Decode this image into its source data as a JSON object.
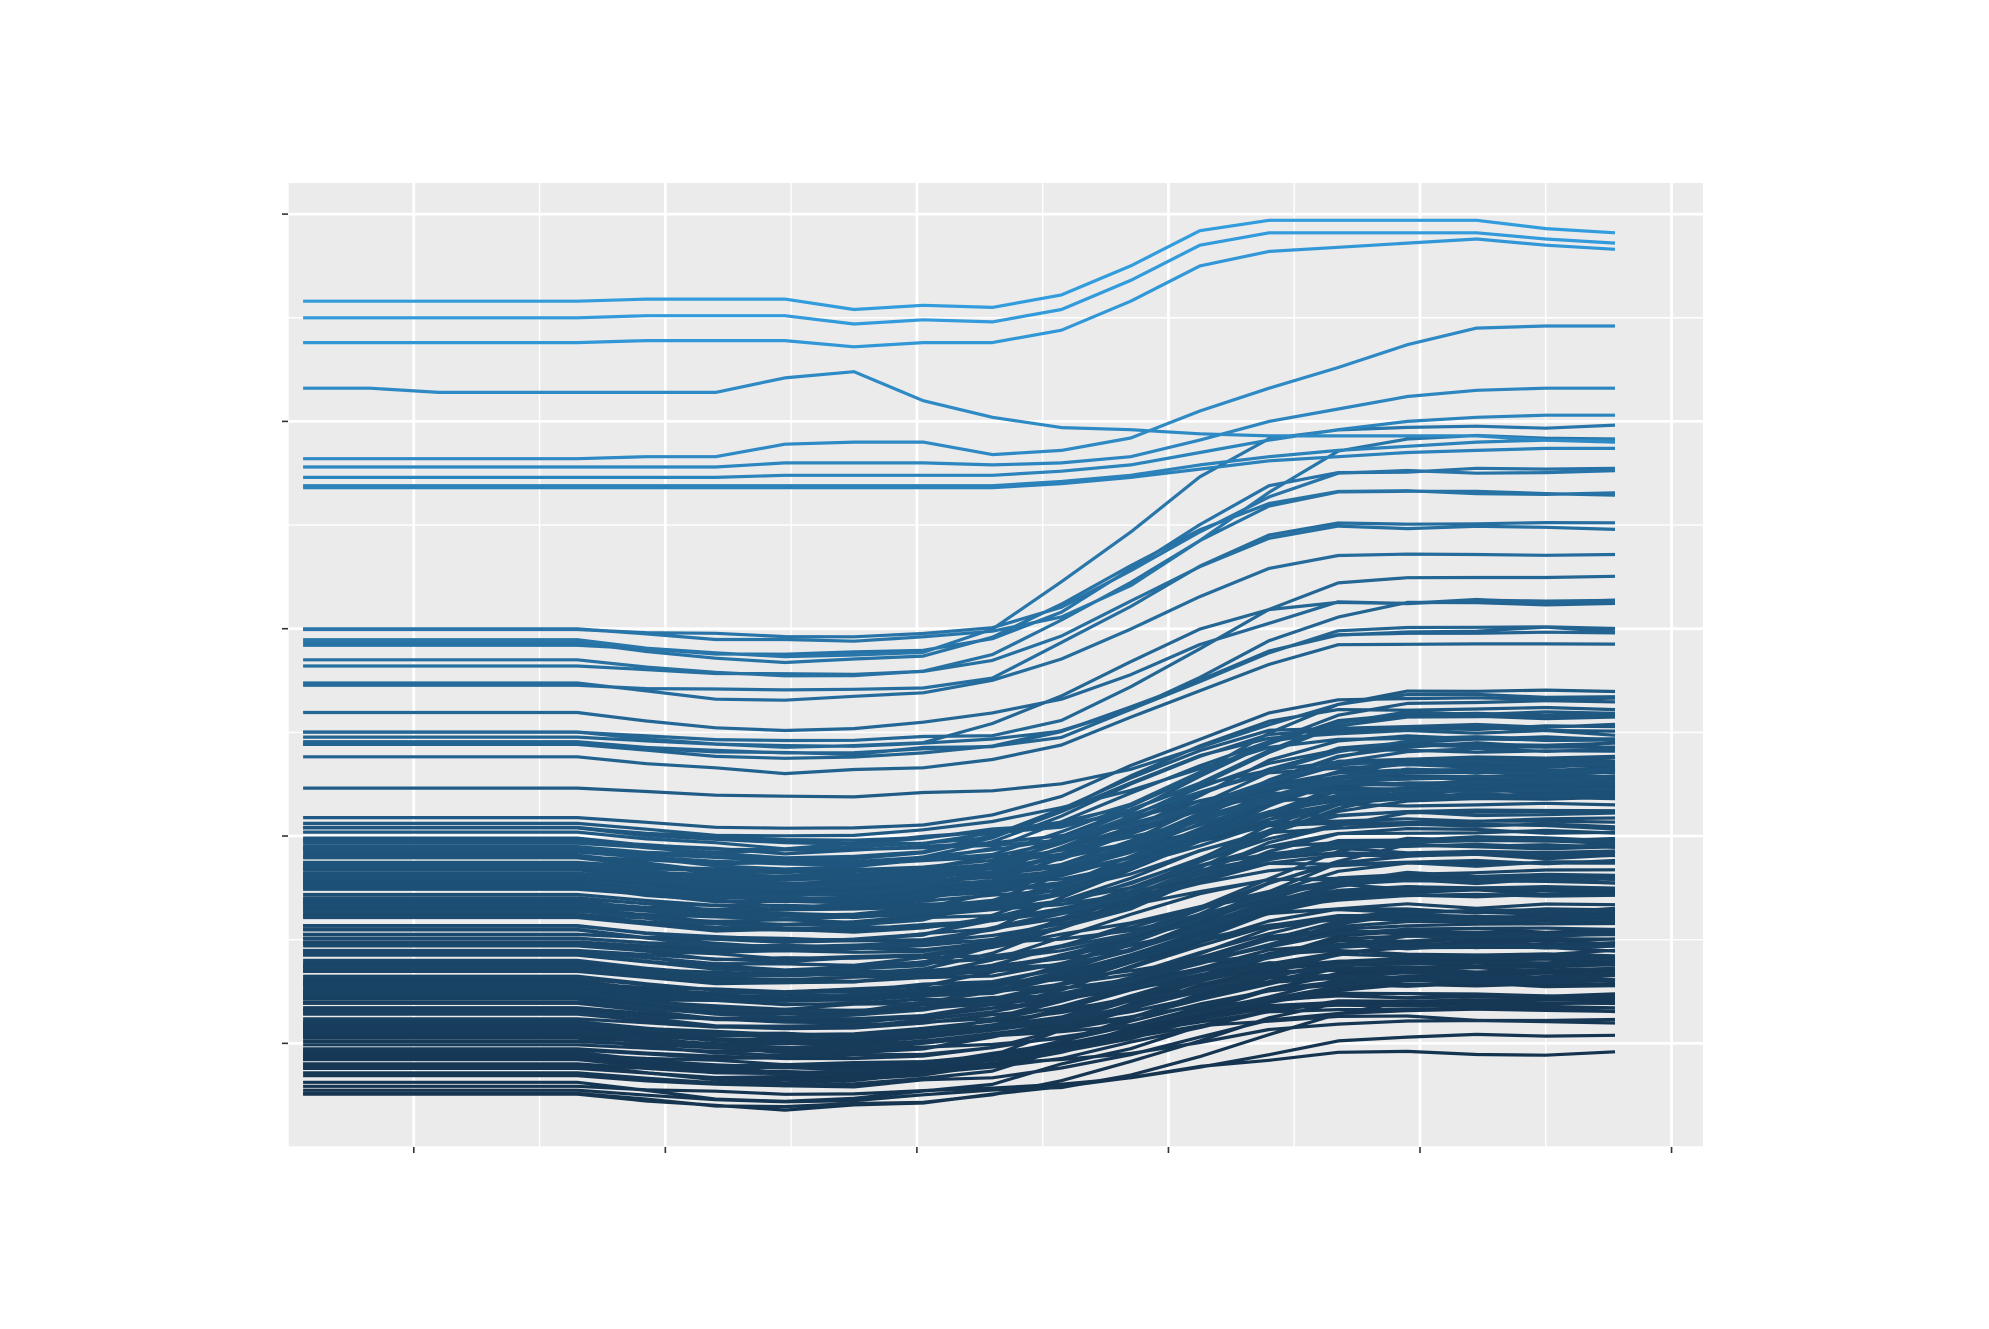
{
  "chart_data": {
    "type": "line",
    "title": "",
    "xlabel": "",
    "ylabel": "",
    "xlim": [
      0,
      11.25
    ],
    "ylim": [
      0,
      4.65
    ],
    "x_ticks_major": [
      1,
      3,
      5,
      7,
      9,
      11
    ],
    "x_ticks_minor": [
      0,
      2,
      4,
      6,
      8,
      10
    ],
    "y_ticks_major": [
      0.5,
      1.5,
      2.5,
      3.5,
      4.5
    ],
    "y_ticks_minor": [
      0,
      1,
      2,
      3,
      4
    ],
    "x_tick_labels": [],
    "y_tick_labels": [],
    "x": [
      0.12,
      0.65,
      1.2,
      1.75,
      2.3,
      2.85,
      3.4,
      3.95,
      4.5,
      5.05,
      5.6,
      6.15,
      6.7,
      7.25,
      7.8,
      8.35,
      8.9,
      9.45,
      10.0,
      10.55
    ],
    "grid": true,
    "legend": "none",
    "panel_background": "#ebebeb",
    "grid_color": "#ffffff",
    "color_low": "#132b43",
    "color_high": "#56b1f7",
    "line_color_range": [
      "#14314c",
      "#35a2e6"
    ],
    "n_series": 200,
    "band_counts": [
      {
        "from": 0.25,
        "to": 0.35,
        "count": 6
      },
      {
        "from": 0.35,
        "to": 0.6,
        "count": 40
      },
      {
        "from": 0.6,
        "to": 1.1,
        "count": 58
      },
      {
        "from": 1.1,
        "to": 1.55,
        "count": 64
      },
      {
        "from": 1.55,
        "to": 2.6,
        "count": 20
      }
    ],
    "series": [
      {
        "values": [
          4.08,
          4.08,
          4.08,
          4.08,
          4.08,
          4.09,
          4.09,
          4.09,
          4.04,
          4.06,
          4.05,
          4.11,
          4.25,
          4.42,
          4.47,
          4.47,
          4.47,
          4.47,
          4.43,
          4.41
        ]
      },
      {
        "values": [
          4.0,
          4.0,
          4.0,
          4.0,
          4.0,
          4.01,
          4.01,
          4.01,
          3.97,
          3.99,
          3.98,
          4.04,
          4.18,
          4.35,
          4.41,
          4.41,
          4.41,
          4.41,
          4.38,
          4.36
        ]
      },
      {
        "values": [
          3.88,
          3.88,
          3.88,
          3.88,
          3.88,
          3.89,
          3.89,
          3.89,
          3.86,
          3.88,
          3.88,
          3.94,
          4.08,
          4.25,
          4.32,
          4.34,
          4.36,
          4.38,
          4.35,
          4.33
        ]
      },
      {
        "values": [
          3.66,
          3.66,
          3.64,
          3.64,
          3.64,
          3.64,
          3.64,
          3.71,
          3.74,
          3.6,
          3.52,
          3.47,
          3.46,
          3.44,
          3.43,
          3.43,
          3.43,
          3.43,
          3.41,
          3.4
        ]
      },
      {
        "values": [
          3.32,
          3.32,
          3.32,
          3.32,
          3.32,
          3.33,
          3.33,
          3.39,
          3.4,
          3.4,
          3.34,
          3.36,
          3.42,
          3.55,
          3.66,
          3.76,
          3.87,
          3.95,
          3.96,
          3.96
        ]
      },
      {
        "values": [
          3.28,
          3.28,
          3.28,
          3.28,
          3.28,
          3.28,
          3.28,
          3.3,
          3.3,
          3.3,
          3.29,
          3.3,
          3.33,
          3.41,
          3.5,
          3.56,
          3.62,
          3.65,
          3.66,
          3.66
        ]
      },
      {
        "values": [
          3.23,
          3.23,
          3.23,
          3.23,
          3.23,
          3.23,
          3.23,
          3.24,
          3.24,
          3.24,
          3.24,
          3.26,
          3.29,
          3.35,
          3.41,
          3.46,
          3.5,
          3.52,
          3.53,
          3.53
        ]
      },
      {
        "values": [
          3.19,
          3.19,
          3.19,
          3.19,
          3.19,
          3.19,
          3.19,
          3.19,
          3.19,
          3.19,
          3.19,
          3.21,
          3.24,
          3.29,
          3.33,
          3.36,
          3.38,
          3.4,
          3.41,
          3.41
        ]
      },
      {
        "values": [
          3.18,
          3.18,
          3.18,
          3.18,
          3.18,
          3.18,
          3.18,
          3.18,
          3.18,
          3.18,
          3.18,
          3.2,
          3.23,
          3.27,
          3.31,
          3.33,
          3.35,
          3.36,
          3.37,
          3.37
        ]
      }
    ]
  }
}
